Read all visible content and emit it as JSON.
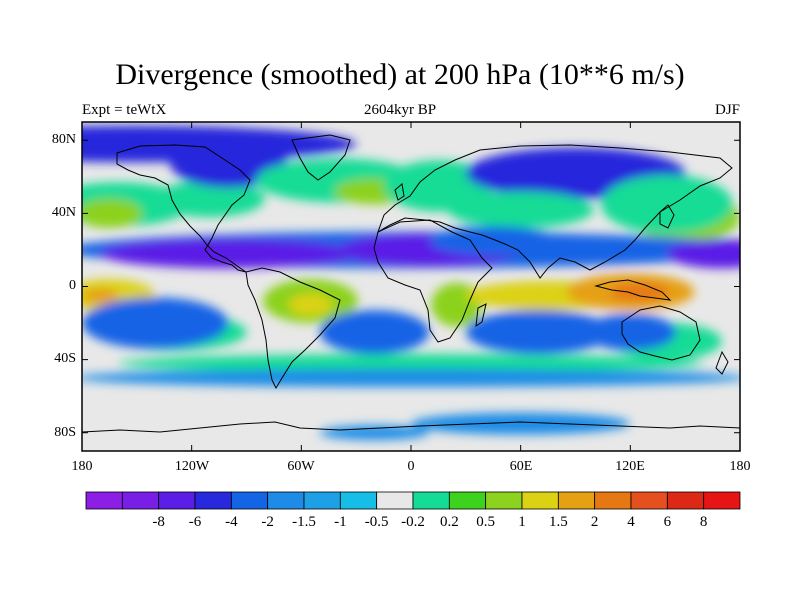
{
  "title": "Divergence (smoothed) at 200 hPa (10**6 m/s)",
  "subtitle": {
    "left": "Expt = teWtX",
    "center": "2604kyr BP",
    "right": "DJF"
  },
  "map": {
    "projection": "cylindrical equidistant",
    "lon_range": [
      -180,
      180
    ],
    "lat_range": [
      -90,
      90
    ],
    "y_ticks": [
      {
        "lat": 80,
        "label": "80N"
      },
      {
        "lat": 40,
        "label": "40N"
      },
      {
        "lat": 0,
        "label": "0"
      },
      {
        "lat": -40,
        "label": "40S"
      },
      {
        "lat": -80,
        "label": "80S"
      }
    ],
    "x_ticks": [
      {
        "lon": -180,
        "label": "180"
      },
      {
        "lon": -120,
        "label": "120W"
      },
      {
        "lon": -60,
        "label": "60W"
      },
      {
        "lon": 0,
        "label": "0"
      },
      {
        "lon": 60,
        "label": "60E"
      },
      {
        "lon": 120,
        "label": "120E"
      },
      {
        "lon": 180,
        "label": "180"
      }
    ],
    "fill_regions": [
      {
        "name": "arctic-blue",
        "lon": -150,
        "lat": 78,
        "w": 120,
        "h": 10,
        "cls": -5
      },
      {
        "name": "n-pacific-green",
        "lon": -160,
        "lat": 45,
        "w": 40,
        "h": 12,
        "cls": 1
      },
      {
        "name": "n-pacific-orange",
        "lon": -165,
        "lat": 40,
        "w": 18,
        "h": 8,
        "cls": 3
      },
      {
        "name": "n-america-green",
        "lon": -110,
        "lat": 48,
        "w": 30,
        "h": 10,
        "cls": 1
      },
      {
        "name": "canada-blue",
        "lon": -100,
        "lat": 68,
        "w": 32,
        "h": 14,
        "cls": -5
      },
      {
        "name": "n-atlantic-green",
        "lon": -40,
        "lat": 58,
        "w": 45,
        "h": 12,
        "cls": 1
      },
      {
        "name": "n-atlantic-orange",
        "lon": -20,
        "lat": 52,
        "w": 22,
        "h": 7,
        "cls": 3
      },
      {
        "name": "europe-green",
        "lon": 15,
        "lat": 55,
        "w": 30,
        "h": 14,
        "cls": 1
      },
      {
        "name": "siberia-blue",
        "lon": 90,
        "lat": 62,
        "w": 60,
        "h": 14,
        "cls": -5
      },
      {
        "name": "c-asia-green",
        "lon": 60,
        "lat": 42,
        "w": 40,
        "h": 10,
        "cls": 1
      },
      {
        "name": "e-asia-orange",
        "lon": 150,
        "lat": 38,
        "w": 30,
        "h": 14,
        "cls": 3
      },
      {
        "name": "e-asia-green",
        "lon": 140,
        "lat": 45,
        "w": 36,
        "h": 16,
        "cls": 1
      },
      {
        "name": "subtrop-n-blue",
        "lon": 0,
        "lat": 20,
        "w": 190,
        "h": 10,
        "cls": -4
      },
      {
        "name": "subtrop-n-dark",
        "lon": -100,
        "lat": 18,
        "w": 70,
        "h": 8,
        "cls": -6
      },
      {
        "name": "africa-dark",
        "lon": 10,
        "lat": 20,
        "w": 50,
        "h": 9,
        "cls": -6
      },
      {
        "name": "pacific-dark",
        "lon": 170,
        "lat": 18,
        "w": 30,
        "h": 8,
        "cls": -6
      },
      {
        "name": "sahara-blue",
        "lon": 45,
        "lat": 25,
        "w": 35,
        "h": 8,
        "cls": -4
      },
      {
        "name": "itcz-w-pacific-orange",
        "lon": -165,
        "lat": -5,
        "w": 25,
        "h": 9,
        "cls": 4
      },
      {
        "name": "itcz-w-pacific-red",
        "lon": -170,
        "lat": -5,
        "w": 10,
        "h": 4,
        "cls": 5
      },
      {
        "name": "s-america-orange",
        "lon": -55,
        "lat": -8,
        "w": 26,
        "h": 12,
        "cls": 3
      },
      {
        "name": "s-america-red",
        "lon": -55,
        "lat": -10,
        "w": 12,
        "h": 6,
        "cls": 4
      },
      {
        "name": "africa-orange",
        "lon": 25,
        "lat": -10,
        "w": 14,
        "h": 12,
        "cls": 3
      },
      {
        "name": "indian-orange",
        "lon": 75,
        "lat": -5,
        "w": 45,
        "h": 8,
        "cls": 4
      },
      {
        "name": "maritime-red",
        "lon": 120,
        "lat": -3,
        "w": 35,
        "h": 10,
        "cls": 5
      },
      {
        "name": "maritime-darkred",
        "lon": 125,
        "lat": -3,
        "w": 16,
        "h": 5,
        "cls": 6
      },
      {
        "name": "s-pacific-green",
        "lon": -130,
        "lat": -25,
        "w": 40,
        "h": 10,
        "cls": 1
      },
      {
        "name": "s-pacific-blue",
        "lon": -140,
        "lat": -20,
        "w": 40,
        "h": 14,
        "cls": -4
      },
      {
        "name": "s-atlantic-blue",
        "lon": -20,
        "lat": -25,
        "w": 30,
        "h": 12,
        "cls": -4
      },
      {
        "name": "s-indian-blue",
        "lon": 70,
        "lat": -25,
        "w": 40,
        "h": 12,
        "cls": -4
      },
      {
        "name": "aus-green",
        "lon": 140,
        "lat": -30,
        "w": 30,
        "h": 10,
        "cls": 1
      },
      {
        "name": "aus-blue",
        "lon": 120,
        "lat": -25,
        "w": 25,
        "h": 10,
        "cls": -4
      },
      {
        "name": "s-ocean-green",
        "lon": 0,
        "lat": -42,
        "w": 160,
        "h": 5,
        "cls": 1
      },
      {
        "name": "s-ocean-blue",
        "lon": 0,
        "lat": -50,
        "w": 185,
        "h": 5,
        "cls": -3
      },
      {
        "name": "antarctic-blue",
        "lon": 60,
        "lat": -75,
        "w": 60,
        "h": 6,
        "cls": -3
      },
      {
        "name": "antarctic-blue-2",
        "lon": -20,
        "lat": -80,
        "w": 30,
        "h": 4,
        "cls": -3
      }
    ]
  },
  "colorbar": {
    "colors": [
      "#8c1ee6",
      "#781ee6",
      "#5a1ee6",
      "#2828dc",
      "#1464e6",
      "#1e8ce6",
      "#1ea0e6",
      "#14bee6",
      "#e8e8e8",
      "#14dc96",
      "#3cd21e",
      "#8cd21e",
      "#dcd214",
      "#e6a014",
      "#e67814",
      "#e6501e",
      "#dc2814",
      "#e61414"
    ],
    "labels": [
      "-8",
      "-6",
      "-4",
      "-2",
      "-1.5",
      "-1",
      "-0.5",
      "-0.2",
      "0.2",
      "0.5",
      "1",
      "1.5",
      "2",
      "4",
      "6",
      "8"
    ]
  }
}
